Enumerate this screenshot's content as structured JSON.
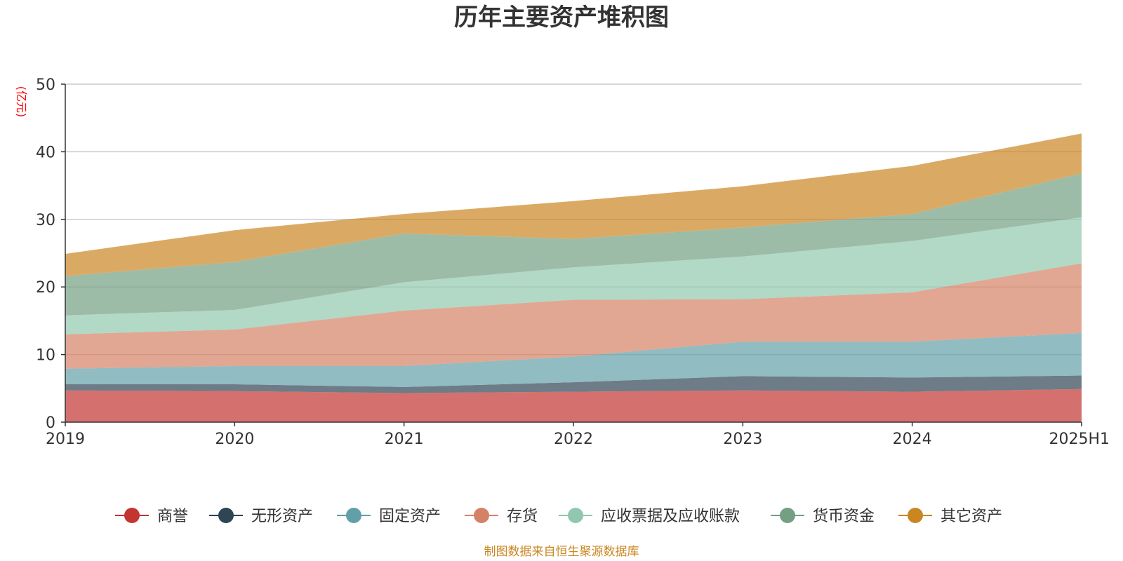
{
  "chart_data": {
    "type": "area",
    "stacked": true,
    "title": "历年主要资产堆积图",
    "ylabel": "(亿元)",
    "xlabel": "",
    "categories": [
      "2019",
      "2020",
      "2021",
      "2022",
      "2023",
      "2024",
      "2025H1"
    ],
    "ylim": [
      0,
      50
    ],
    "yticks": [
      0,
      10,
      20,
      30,
      40,
      50
    ],
    "grid": true,
    "legend_position": "bottom",
    "series": [
      {
        "name": "商誉",
        "color": "#c23531",
        "values": [
          4.7,
          4.6,
          4.3,
          4.5,
          4.7,
          4.5,
          4.9
        ]
      },
      {
        "name": "无形资产",
        "color": "#2f4554",
        "values": [
          0.9,
          1.0,
          0.9,
          1.4,
          2.1,
          2.1,
          2.0
        ]
      },
      {
        "name": "固定资产",
        "color": "#61a0a8",
        "values": [
          2.3,
          2.7,
          3.1,
          3.8,
          5.1,
          5.3,
          6.3
        ]
      },
      {
        "name": "存货",
        "color": "#d48265",
        "values": [
          5.1,
          5.4,
          8.2,
          8.4,
          6.3,
          7.3,
          10.3
        ]
      },
      {
        "name": "应收票据及应收账款",
        "color": "#91c7ae",
        "values": [
          2.8,
          2.9,
          4.2,
          4.8,
          6.3,
          7.6,
          6.8
        ]
      },
      {
        "name": "货币资金",
        "color": "#749f83",
        "values": [
          5.8,
          7.1,
          7.2,
          4.2,
          4.3,
          4.0,
          6.5
        ]
      },
      {
        "name": "其它资产",
        "color": "#ca8622",
        "values": [
          3.3,
          4.7,
          2.9,
          5.6,
          6.1,
          7.1,
          5.9
        ]
      }
    ],
    "source_note": "制图数据来自恒生聚源数据库"
  }
}
